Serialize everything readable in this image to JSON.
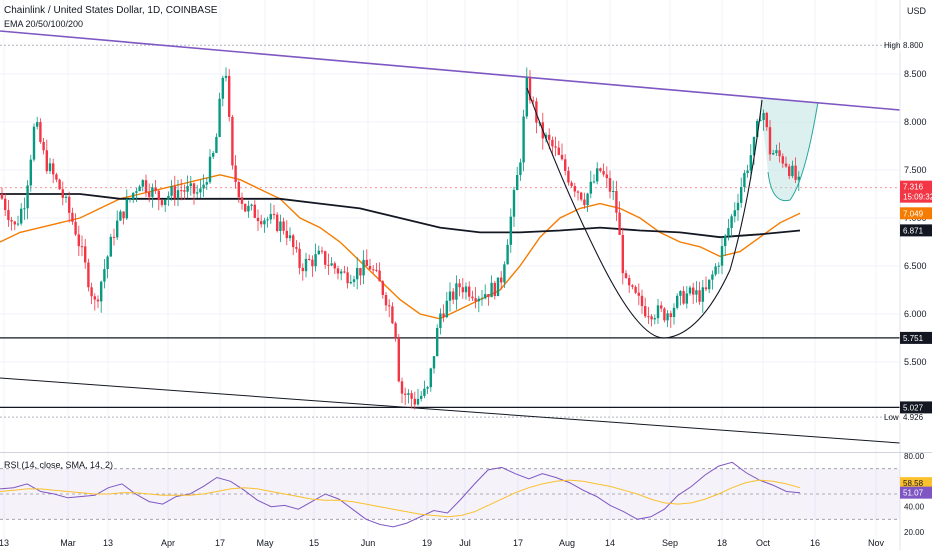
{
  "header": {
    "title": "Chainlink / United States Dollar, 1D, COINBASE",
    "indicator": "EMA 20/50/100/200",
    "currency": "USD"
  },
  "rsi_header": "RSI (14, close, SMA, 14, 2)",
  "colors": {
    "up": "#089981",
    "down": "#f23645",
    "ema_orange": "#f57c00",
    "ema_black": "#131722",
    "trendline": "#7e57c2",
    "rsi_line": "#7e57c2",
    "rsi_sma": "#fbc02d",
    "projection_fill": "#b2dfdb"
  },
  "chart_data": [
    {
      "type": "candlestick",
      "title": "Chainlink / United States Dollar, 1D, COINBASE",
      "ylim": [
        4.6,
        9.0
      ],
      "y_ticks": [
        "8.500",
        "8.000",
        "7.500",
        "7.000",
        "6.500",
        "6.000",
        "5.500"
      ],
      "x_ticks": [
        "13",
        "Mar",
        "13",
        "Apr",
        "17",
        "May",
        "15",
        "Jun",
        "19",
        "Jul",
        "17",
        "Aug",
        "14",
        "Sep",
        "18",
        "Oct",
        "16",
        "Nov"
      ],
      "price_labels": [
        {
          "text": "High",
          "value": "8.800"
        },
        {
          "text": "Low",
          "value": "4.926"
        },
        {
          "text": "",
          "value": "7.316"
        },
        {
          "text": "",
          "value": "15:09:32"
        },
        {
          "text": "",
          "value": "7.049"
        },
        {
          "text": "",
          "value": "6.871"
        },
        {
          "text": "",
          "value": "5.751"
        },
        {
          "text": "",
          "value": "5.027"
        }
      ],
      "horizontal_levels": [
        5.751,
        5.027
      ],
      "series": [
        {
          "name": "EMA 20",
          "points": [
            [
              0,
              6.75
            ],
            [
              20,
              6.85
            ],
            [
              60,
              6.95
            ],
            [
              80,
              7.0
            ],
            [
              100,
              7.1
            ],
            [
              120,
              7.2
            ],
            [
              140,
              7.25
            ],
            [
              160,
              7.3
            ],
            [
              180,
              7.35
            ],
            [
              200,
              7.4
            ],
            [
              220,
              7.45
            ],
            [
              240,
              7.4
            ],
            [
              260,
              7.3
            ],
            [
              280,
              7.2
            ],
            [
              300,
              7.0
            ],
            [
              320,
              6.9
            ],
            [
              340,
              6.75
            ],
            [
              360,
              6.55
            ],
            [
              380,
              6.35
            ],
            [
              400,
              6.15
            ],
            [
              420,
              6.0
            ],
            [
              440,
              5.95
            ],
            [
              460,
              6.05
            ],
            [
              480,
              6.15
            ],
            [
              500,
              6.25
            ],
            [
              520,
              6.5
            ],
            [
              540,
              6.8
            ],
            [
              560,
              7.0
            ],
            [
              580,
              7.1
            ],
            [
              600,
              7.15
            ],
            [
              620,
              7.1
            ],
            [
              640,
              7.0
            ],
            [
              660,
              6.85
            ],
            [
              680,
              6.75
            ],
            [
              700,
              6.7
            ],
            [
              720,
              6.6
            ],
            [
              740,
              6.65
            ],
            [
              760,
              6.8
            ],
            [
              780,
              6.95
            ],
            [
              800,
              7.05
            ]
          ]
        },
        {
          "name": "EMA 200",
          "points": [
            [
              0,
              7.25
            ],
            [
              40,
              7.25
            ],
            [
              80,
              7.25
            ],
            [
              120,
              7.2
            ],
            [
              160,
              7.2
            ],
            [
              200,
              7.2
            ],
            [
              240,
              7.2
            ],
            [
              280,
              7.2
            ],
            [
              320,
              7.15
            ],
            [
              360,
              7.1
            ],
            [
              400,
              7.0
            ],
            [
              440,
              6.9
            ],
            [
              480,
              6.85
            ],
            [
              520,
              6.85
            ],
            [
              560,
              6.87
            ],
            [
              600,
              6.9
            ],
            [
              640,
              6.87
            ],
            [
              680,
              6.85
            ],
            [
              720,
              6.8
            ],
            [
              760,
              6.83
            ],
            [
              800,
              6.87
            ]
          ]
        }
      ],
      "pattern": "cup and handle"
    },
    {
      "type": "line",
      "title": "RSI (14, close, SMA, 14, 2)",
      "ylim": [
        20,
        80
      ],
      "y_ticks": [
        "80.00",
        "40.00",
        "20.00"
      ],
      "value_labels": [
        "58.58",
        "51.07"
      ],
      "bands": [
        30,
        70
      ],
      "series": [
        {
          "name": "RSI",
          "values": [
            54,
            55,
            58,
            52,
            50,
            47,
            48,
            49,
            55,
            58,
            50,
            44,
            42,
            48,
            50,
            56,
            63,
            60,
            53,
            45,
            40,
            41,
            38,
            44,
            50,
            46,
            38,
            30,
            26,
            24,
            27,
            32,
            37,
            35,
            46,
            58,
            69,
            71,
            66,
            62,
            66,
            63,
            59,
            53,
            48,
            41,
            36,
            30,
            32,
            38,
            49,
            56,
            65,
            72,
            75,
            67,
            61,
            57,
            52,
            51
          ]
        },
        {
          "name": "RSI SMA",
          "values": [
            52,
            53,
            54,
            54,
            53,
            52,
            51,
            50,
            50,
            51,
            51,
            50,
            49,
            49,
            49,
            50,
            52,
            54,
            55,
            54,
            52,
            50,
            48,
            46,
            45,
            45,
            44,
            42,
            40,
            38,
            36,
            34,
            33,
            32,
            33,
            36,
            41,
            46,
            51,
            55,
            58,
            60,
            61,
            60,
            58,
            56,
            53,
            50,
            46,
            43,
            42,
            43,
            46,
            50,
            55,
            59,
            61,
            60,
            58,
            55
          ]
        }
      ]
    }
  ]
}
